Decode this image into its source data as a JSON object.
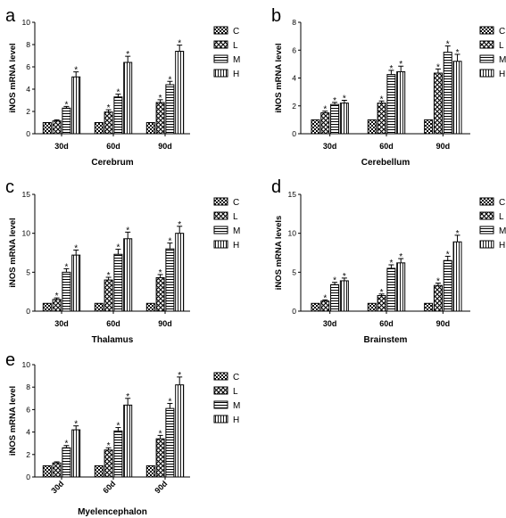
{
  "chart_data": [
    {
      "type": "bar",
      "panel_label": "a",
      "xlabel": "Cerebrum",
      "ylabel": "iNOS mRNA level",
      "ylim": [
        0,
        10
      ],
      "yticks": [
        0,
        2,
        4,
        6,
        8,
        10
      ],
      "categories": [
        "30d",
        "60d",
        "90d"
      ],
      "series": [
        {
          "name": "C",
          "values": [
            1.0,
            1.0,
            1.0
          ],
          "errors": [
            0,
            0,
            0
          ],
          "sig": [
            false,
            false,
            false
          ]
        },
        {
          "name": "L",
          "values": [
            1.15,
            1.95,
            2.8
          ],
          "errors": [
            0.1,
            0.2,
            0.25
          ],
          "sig": [
            false,
            true,
            true
          ]
        },
        {
          "name": "M",
          "values": [
            2.3,
            3.3,
            4.4
          ],
          "errors": [
            0.15,
            0.25,
            0.3
          ],
          "sig": [
            true,
            true,
            true
          ]
        },
        {
          "name": "H",
          "values": [
            5.1,
            6.4,
            7.4
          ],
          "errors": [
            0.45,
            0.55,
            0.55
          ],
          "sig": [
            true,
            true,
            true
          ]
        }
      ],
      "legend_position": "right"
    },
    {
      "type": "bar",
      "panel_label": "b",
      "xlabel": "Cerebellum",
      "ylabel": "iNOS mRNA level",
      "ylim": [
        0,
        8
      ],
      "yticks": [
        0,
        2,
        4,
        6,
        8
      ],
      "categories": [
        "30d",
        "60d",
        "90d"
      ],
      "series": [
        {
          "name": "C",
          "values": [
            1.0,
            1.0,
            1.0
          ],
          "errors": [
            0,
            0,
            0
          ],
          "sig": [
            false,
            false,
            false
          ]
        },
        {
          "name": "L",
          "values": [
            1.5,
            2.2,
            4.35
          ],
          "errors": [
            0.12,
            0.15,
            0.3
          ],
          "sig": [
            true,
            true,
            true
          ]
        },
        {
          "name": "M",
          "values": [
            2.1,
            4.25,
            5.85
          ],
          "errors": [
            0.15,
            0.3,
            0.45
          ],
          "sig": [
            true,
            true,
            true
          ]
        },
        {
          "name": "H",
          "values": [
            2.2,
            4.45,
            5.2
          ],
          "errors": [
            0.2,
            0.4,
            0.5
          ],
          "sig": [
            true,
            true,
            true
          ]
        }
      ],
      "legend_position": "right"
    },
    {
      "type": "bar",
      "panel_label": "c",
      "xlabel": "Thalamus",
      "ylabel": "iNOS mRNA level",
      "ylim": [
        0,
        15
      ],
      "yticks": [
        0,
        5,
        10,
        15
      ],
      "categories": [
        "30d",
        "60d",
        "90d"
      ],
      "series": [
        {
          "name": "C",
          "values": [
            1.0,
            1.0,
            1.0
          ],
          "errors": [
            0,
            0,
            0
          ],
          "sig": [
            false,
            false,
            false
          ]
        },
        {
          "name": "L",
          "values": [
            1.5,
            4.0,
            4.3
          ],
          "errors": [
            0.2,
            0.35,
            0.4
          ],
          "sig": [
            true,
            true,
            true
          ]
        },
        {
          "name": "M",
          "values": [
            5.0,
            7.3,
            8.0
          ],
          "errors": [
            0.45,
            0.65,
            0.75
          ],
          "sig": [
            true,
            true,
            true
          ]
        },
        {
          "name": "H",
          "values": [
            7.2,
            9.3,
            10.0
          ],
          "errors": [
            0.65,
            0.85,
            0.9
          ],
          "sig": [
            true,
            true,
            true
          ]
        }
      ],
      "legend_position": "right"
    },
    {
      "type": "bar",
      "panel_label": "d",
      "xlabel": "Brainstem",
      "ylabel": "iNOS mRNA levels",
      "ylim": [
        0,
        15
      ],
      "yticks": [
        0,
        5,
        10,
        15
      ],
      "categories": [
        "30d",
        "60d",
        "90d"
      ],
      "series": [
        {
          "name": "C",
          "values": [
            1.0,
            1.0,
            1.0
          ],
          "errors": [
            0,
            0,
            0
          ],
          "sig": [
            false,
            false,
            false
          ]
        },
        {
          "name": "L",
          "values": [
            1.3,
            2.0,
            3.3
          ],
          "errors": [
            0.15,
            0.2,
            0.3
          ],
          "sig": [
            true,
            true,
            true
          ]
        },
        {
          "name": "M",
          "values": [
            3.4,
            5.5,
            6.5
          ],
          "errors": [
            0.3,
            0.45,
            0.55
          ],
          "sig": [
            true,
            true,
            true
          ]
        },
        {
          "name": "H",
          "values": [
            3.9,
            6.2,
            8.9
          ],
          "errors": [
            0.35,
            0.55,
            0.85
          ],
          "sig": [
            true,
            true,
            true
          ]
        }
      ],
      "legend_position": "right"
    },
    {
      "type": "bar",
      "panel_label": "e",
      "xlabel": "Myelencephalon",
      "ylabel": "iNOS mRNA level",
      "ylim": [
        0,
        10
      ],
      "yticks": [
        0,
        2,
        4,
        6,
        8,
        10
      ],
      "categories": [
        "30d",
        "60d",
        "90d"
      ],
      "series": [
        {
          "name": "C",
          "values": [
            1.0,
            1.0,
            1.0
          ],
          "errors": [
            0,
            0,
            0
          ],
          "sig": [
            false,
            false,
            false
          ]
        },
        {
          "name": "L",
          "values": [
            1.25,
            2.4,
            3.4
          ],
          "errors": [
            0.1,
            0.2,
            0.3
          ],
          "sig": [
            false,
            true,
            true
          ]
        },
        {
          "name": "M",
          "values": [
            2.6,
            4.1,
            6.1
          ],
          "errors": [
            0.2,
            0.3,
            0.45
          ],
          "sig": [
            true,
            true,
            true
          ]
        },
        {
          "name": "H",
          "values": [
            4.2,
            6.4,
            8.2
          ],
          "errors": [
            0.35,
            0.6,
            0.7
          ],
          "sig": [
            true,
            true,
            true
          ]
        }
      ],
      "legend_position": "right",
      "rotated_ticks": true
    }
  ],
  "style": {
    "bar_fill": "#ffffff",
    "stroke": "#000000",
    "significance_marker": "*"
  }
}
